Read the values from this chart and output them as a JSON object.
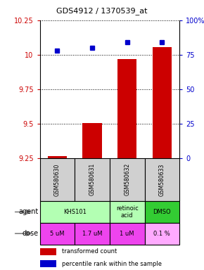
{
  "title": "GDS4912 / 1370539_at",
  "samples": [
    "GSM580630",
    "GSM580631",
    "GSM580632",
    "GSM580633"
  ],
  "bar_values": [
    9.265,
    9.505,
    9.97,
    10.055
  ],
  "bar_base": 9.25,
  "dot_values": [
    78,
    80,
    84,
    84
  ],
  "ylim_left": [
    9.25,
    10.25
  ],
  "ylim_right": [
    0,
    100
  ],
  "yticks_left": [
    9.25,
    9.5,
    9.75,
    10.0,
    10.25
  ],
  "yticks_right": [
    0,
    25,
    50,
    75,
    100
  ],
  "ytick_labels_left": [
    "9.25",
    "9.5",
    "9.75",
    "10",
    "10.25"
  ],
  "ytick_labels_right": [
    "0",
    "25",
    "50",
    "75",
    "100%"
  ],
  "agent_groups": [
    {
      "label": "KHS101",
      "start": 0,
      "end": 2,
      "color": "#b3ffb3"
    },
    {
      "label": "retinoic\nacid",
      "start": 2,
      "end": 3,
      "color": "#b3ffb3"
    },
    {
      "label": "DMSO",
      "start": 3,
      "end": 4,
      "color": "#33cc33"
    }
  ],
  "dose_labels": [
    "5 uM",
    "1.7 uM",
    "1 uM",
    "0.1 %"
  ],
  "dose_colors": [
    "#ee44ee",
    "#ee44ee",
    "#ee44ee",
    "#ffaaff"
  ],
  "bar_color": "#cc0000",
  "dot_color": "#0000cc",
  "sample_bg": "#d0d0d0"
}
